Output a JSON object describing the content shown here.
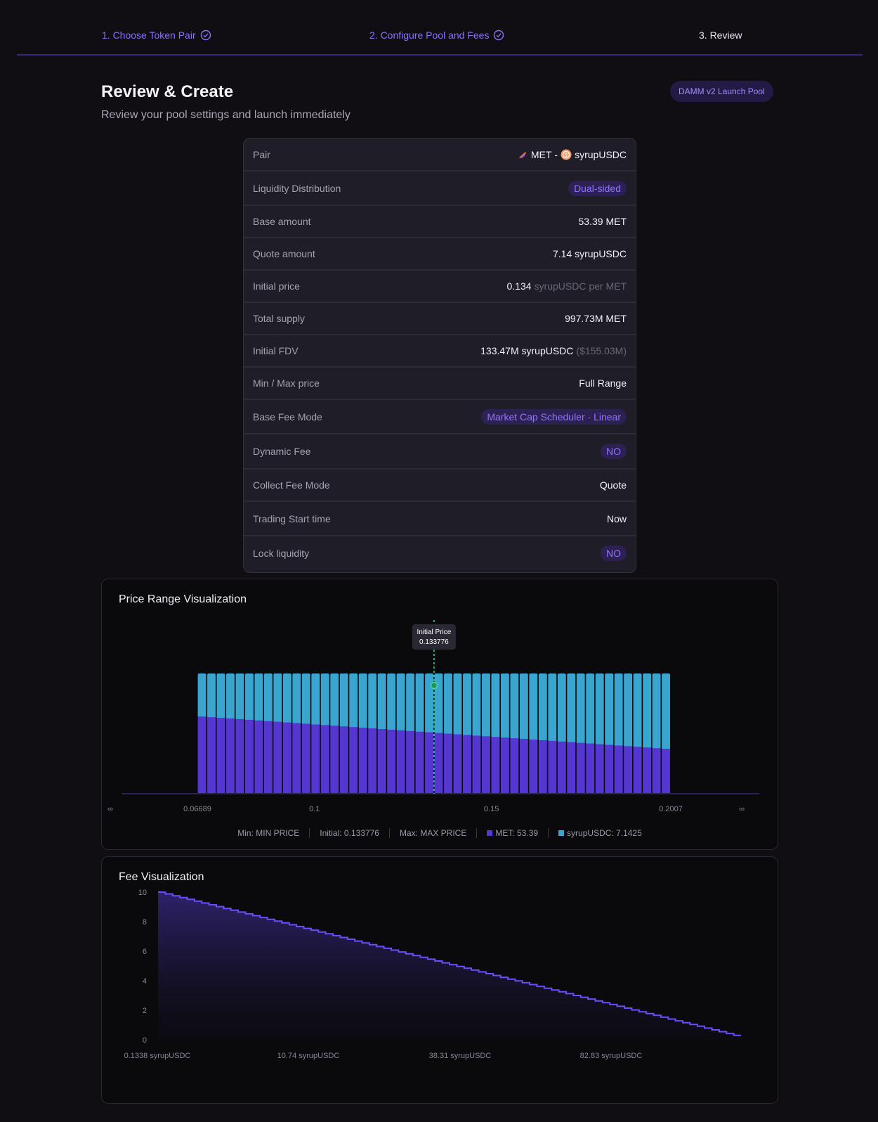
{
  "stepper": {
    "steps": [
      {
        "label": "1. Choose Token Pair",
        "state": "done"
      },
      {
        "label": "2. Configure Pool and Fees",
        "state": "done"
      },
      {
        "label": "3. Review",
        "state": "current"
      }
    ]
  },
  "header": {
    "title": "Review & Create",
    "subtitle": "Review your pool settings and launch immediately",
    "badge": "DAMM v2 Launch Pool"
  },
  "review": {
    "pair": {
      "label": "Pair",
      "base": "MET",
      "separator": "-",
      "quote": "syrupUSDC"
    },
    "liquidity_distribution": {
      "label": "Liquidity Distribution",
      "value": "Dual-sided"
    },
    "base_amount": {
      "label": "Base amount",
      "value": "53.39 MET"
    },
    "quote_amount": {
      "label": "Quote amount",
      "value": "7.14 syrupUSDC"
    },
    "initial_price": {
      "label": "Initial price",
      "value": "0.134",
      "unit": "syrupUSDC per MET"
    },
    "total_supply": {
      "label": "Total supply",
      "value": "997.73M MET"
    },
    "initial_fdv": {
      "label": "Initial FDV",
      "value": "133.47M syrupUSDC",
      "usd": "($155.03M)"
    },
    "min_max_price": {
      "label": "Min / Max price",
      "value": "Full Range"
    },
    "base_fee_mode": {
      "label": "Base Fee Mode",
      "value": "Market Cap Scheduler · Linear"
    },
    "dynamic_fee": {
      "label": "Dynamic Fee",
      "value": "NO"
    },
    "collect_fee_mode": {
      "label": "Collect Fee Mode",
      "value": "Quote"
    },
    "trading_start": {
      "label": "Trading Start time",
      "value": "Now"
    },
    "lock_liquidity": {
      "label": "Lock liquidity",
      "value": "NO"
    }
  },
  "colors": {
    "accent": "#8b70ff",
    "met": "#5636d1",
    "syrupusdc": "#3aa5cf",
    "marker": "#3ddc97"
  },
  "price_range": {
    "title": "Price Range Visualization",
    "tooltip_title": "Initial Price",
    "tooltip_value": "0.133776",
    "tick_labels": [
      "∞",
      "0.06689",
      "0.1",
      "0.15",
      "0.2007",
      "∞"
    ],
    "legend": {
      "min": "Min: MIN PRICE",
      "initial": "Initial: 0.133776",
      "max": "Max: MAX PRICE",
      "met": "MET: 53.39",
      "quote": "syrupUSDC: 7.1425"
    }
  },
  "chart_data": [
    {
      "type": "bar",
      "title": "Price Range Visualization",
      "x_range": [
        0.06689,
        0.2007
      ],
      "bar_count": 50,
      "initial_price": 0.133776,
      "series": [
        {
          "name": "MET",
          "values_start": 0.64,
          "values_end": 0.37
        },
        {
          "name": "syrupUSDC",
          "values_start": 0.36,
          "values_end": 0.63
        }
      ],
      "xticks": [
        0.06689,
        0.1,
        0.15,
        0.2007
      ]
    },
    {
      "type": "area",
      "title": "Fee Visualization",
      "ylim": [
        0,
        10
      ],
      "yticks": [
        0,
        2,
        4,
        6,
        8,
        10
      ],
      "y_start": 10,
      "y_end": 0.3,
      "steps": 80,
      "xtick_labels": [
        "0.1338 syrupUSDC",
        "10.74 syrupUSDC",
        "38.31 syrupUSDC",
        "82.83 syrupUSDC"
      ]
    }
  ],
  "fee": {
    "title": "Fee Visualization"
  }
}
